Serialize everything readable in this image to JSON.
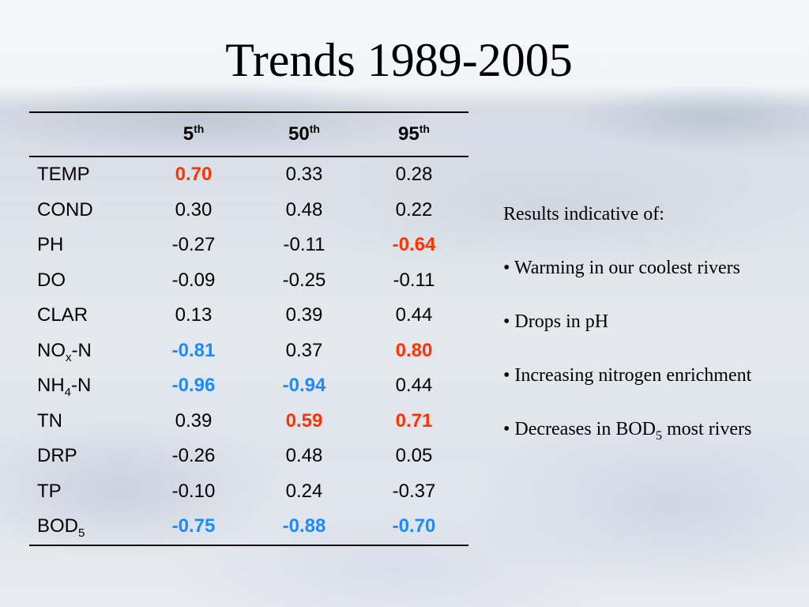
{
  "slide": {
    "title": "Trends 1989-2005"
  },
  "colors": {
    "positive_highlight": "#ff3300",
    "negative_highlight": "#1a8cff",
    "text": "#000000"
  },
  "table": {
    "headers": [
      {
        "base": "5",
        "sup": "th"
      },
      {
        "base": "50",
        "sup": "th"
      },
      {
        "base": "95",
        "sup": "th"
      }
    ],
    "rows": [
      {
        "name": "TEMP",
        "name_sub": "",
        "name_suffix": "",
        "values": [
          {
            "v": "0.70",
            "hl": "pos"
          },
          {
            "v": "0.33",
            "hl": ""
          },
          {
            "v": "0.28",
            "hl": ""
          }
        ]
      },
      {
        "name": "COND",
        "name_sub": "",
        "name_suffix": "",
        "values": [
          {
            "v": "0.30",
            "hl": ""
          },
          {
            "v": "0.48",
            "hl": ""
          },
          {
            "v": "0.22",
            "hl": ""
          }
        ]
      },
      {
        "name": "PH",
        "name_sub": "",
        "name_suffix": "",
        "values": [
          {
            "v": "-0.27",
            "hl": ""
          },
          {
            "v": "-0.11",
            "hl": ""
          },
          {
            "v": "-0.64",
            "hl": "pos"
          }
        ]
      },
      {
        "name": "DO",
        "name_sub": "",
        "name_suffix": "",
        "values": [
          {
            "v": "-0.09",
            "hl": ""
          },
          {
            "v": "-0.25",
            "hl": ""
          },
          {
            "v": "-0.11",
            "hl": ""
          }
        ]
      },
      {
        "name": "CLAR",
        "name_sub": "",
        "name_suffix": "",
        "values": [
          {
            "v": "0.13",
            "hl": ""
          },
          {
            "v": "0.39",
            "hl": ""
          },
          {
            "v": "0.44",
            "hl": ""
          }
        ]
      },
      {
        "name": "NO",
        "name_sub": "x",
        "name_suffix": "-N",
        "values": [
          {
            "v": "-0.81",
            "hl": "neg"
          },
          {
            "v": "0.37",
            "hl": ""
          },
          {
            "v": "0.80",
            "hl": "pos"
          }
        ]
      },
      {
        "name": "NH",
        "name_sub": "4",
        "name_suffix": "-N",
        "values": [
          {
            "v": "-0.96",
            "hl": "neg"
          },
          {
            "v": "-0.94",
            "hl": "neg"
          },
          {
            "v": "0.44",
            "hl": ""
          }
        ]
      },
      {
        "name": "TN",
        "name_sub": "",
        "name_suffix": "",
        "values": [
          {
            "v": "0.39",
            "hl": ""
          },
          {
            "v": "0.59",
            "hl": "pos"
          },
          {
            "v": "0.71",
            "hl": "pos"
          }
        ]
      },
      {
        "name": "DRP",
        "name_sub": "",
        "name_suffix": "",
        "values": [
          {
            "v": "-0.26",
            "hl": ""
          },
          {
            "v": "0.48",
            "hl": ""
          },
          {
            "v": "0.05",
            "hl": ""
          }
        ]
      },
      {
        "name": "TP",
        "name_sub": "",
        "name_suffix": "",
        "values": [
          {
            "v": "-0.10",
            "hl": ""
          },
          {
            "v": "0.24",
            "hl": ""
          },
          {
            "v": "-0.37",
            "hl": ""
          }
        ]
      },
      {
        "name": "BOD",
        "name_sub": "5",
        "name_suffix": "",
        "values": [
          {
            "v": "-0.75",
            "hl": "neg"
          },
          {
            "v": "-0.88",
            "hl": "neg"
          },
          {
            "v": "-0.70",
            "hl": "neg"
          }
        ]
      }
    ]
  },
  "notes": {
    "heading": "Results indicative of:",
    "bullets": [
      {
        "text": "• Warming in our coolest rivers",
        "sub": "",
        "after": ""
      },
      {
        "text": "• Drops in pH",
        "sub": "",
        "after": ""
      },
      {
        "text": "• Increasing nitrogen enrichment",
        "sub": "",
        "after": ""
      },
      {
        "text": "• Decreases in BOD",
        "sub": "5",
        "after": " most rivers"
      }
    ]
  }
}
